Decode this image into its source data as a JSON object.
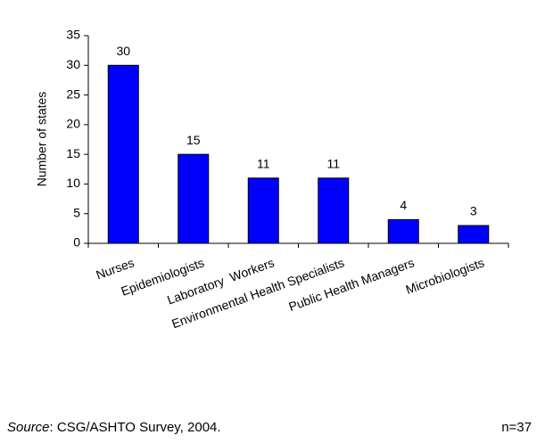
{
  "chart_data": {
    "type": "bar",
    "ylabel": "Number of states",
    "categories": [
      "Nurses",
      "Epidemiologists",
      "Laboratory  Workers",
      "Environmental Health Specialists",
      "Public Health Managers",
      "Microbiologists"
    ],
    "values": [
      30,
      15,
      11,
      11,
      4,
      3
    ],
    "color": "#0000ff",
    "ylim": [
      0,
      35
    ],
    "yticks": [
      0,
      5,
      10,
      15,
      20,
      25,
      30,
      35
    ],
    "grid": false,
    "source": {
      "label": "Source",
      "text": ": CSG/ASHTO Survey, 2004."
    },
    "note": "n=37"
  }
}
